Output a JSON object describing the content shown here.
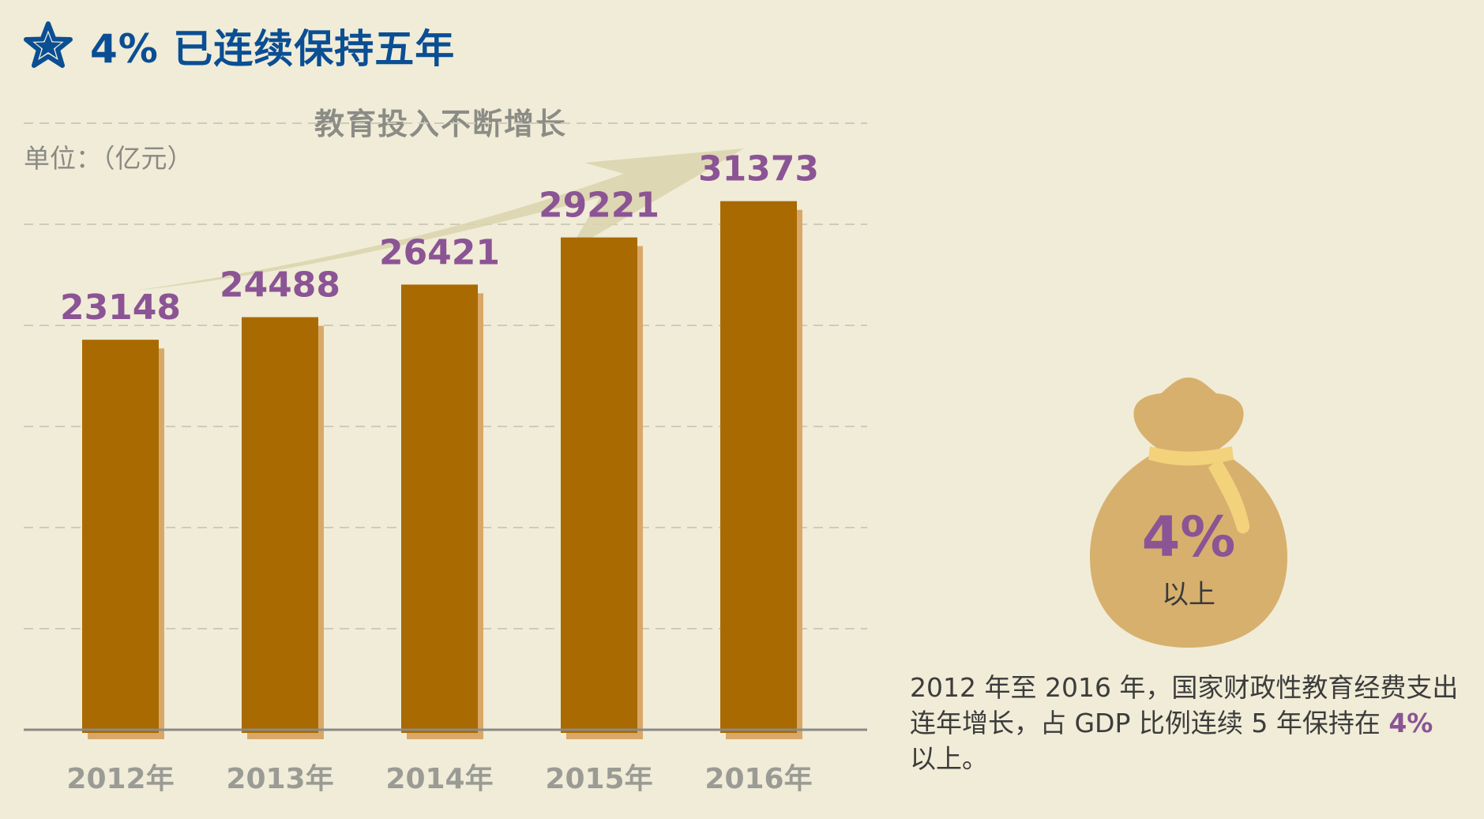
{
  "header": {
    "title": "4% 已连续保持五年",
    "icon": "star-icon",
    "color": "#0a4e94"
  },
  "chart_data": {
    "type": "bar",
    "title": "",
    "unit_label": "单位：（亿元）",
    "trend_label": "教育投入不断增长",
    "categories": [
      "2012年",
      "2013年",
      "2014年",
      "2015年",
      "2016年"
    ],
    "values": [
      23148,
      24488,
      26421,
      29221,
      31373
    ],
    "xlabel": "",
    "ylabel": "",
    "ylim": [
      0,
      36000
    ],
    "grid": true,
    "bar_color": "#a96a01",
    "shadow_color": "#d9a868",
    "value_label_color": "#8b5494"
  },
  "side": {
    "icon": "money-bag-icon",
    "percent": "4%",
    "sub_label": "以上"
  },
  "description": {
    "part1": "2012 年至 2016 年，国家财政性教育经费支出连年增长，占 GDP 比例连续 5 年保持在 ",
    "highlight": "4%",
    "part2": " 以上。"
  }
}
